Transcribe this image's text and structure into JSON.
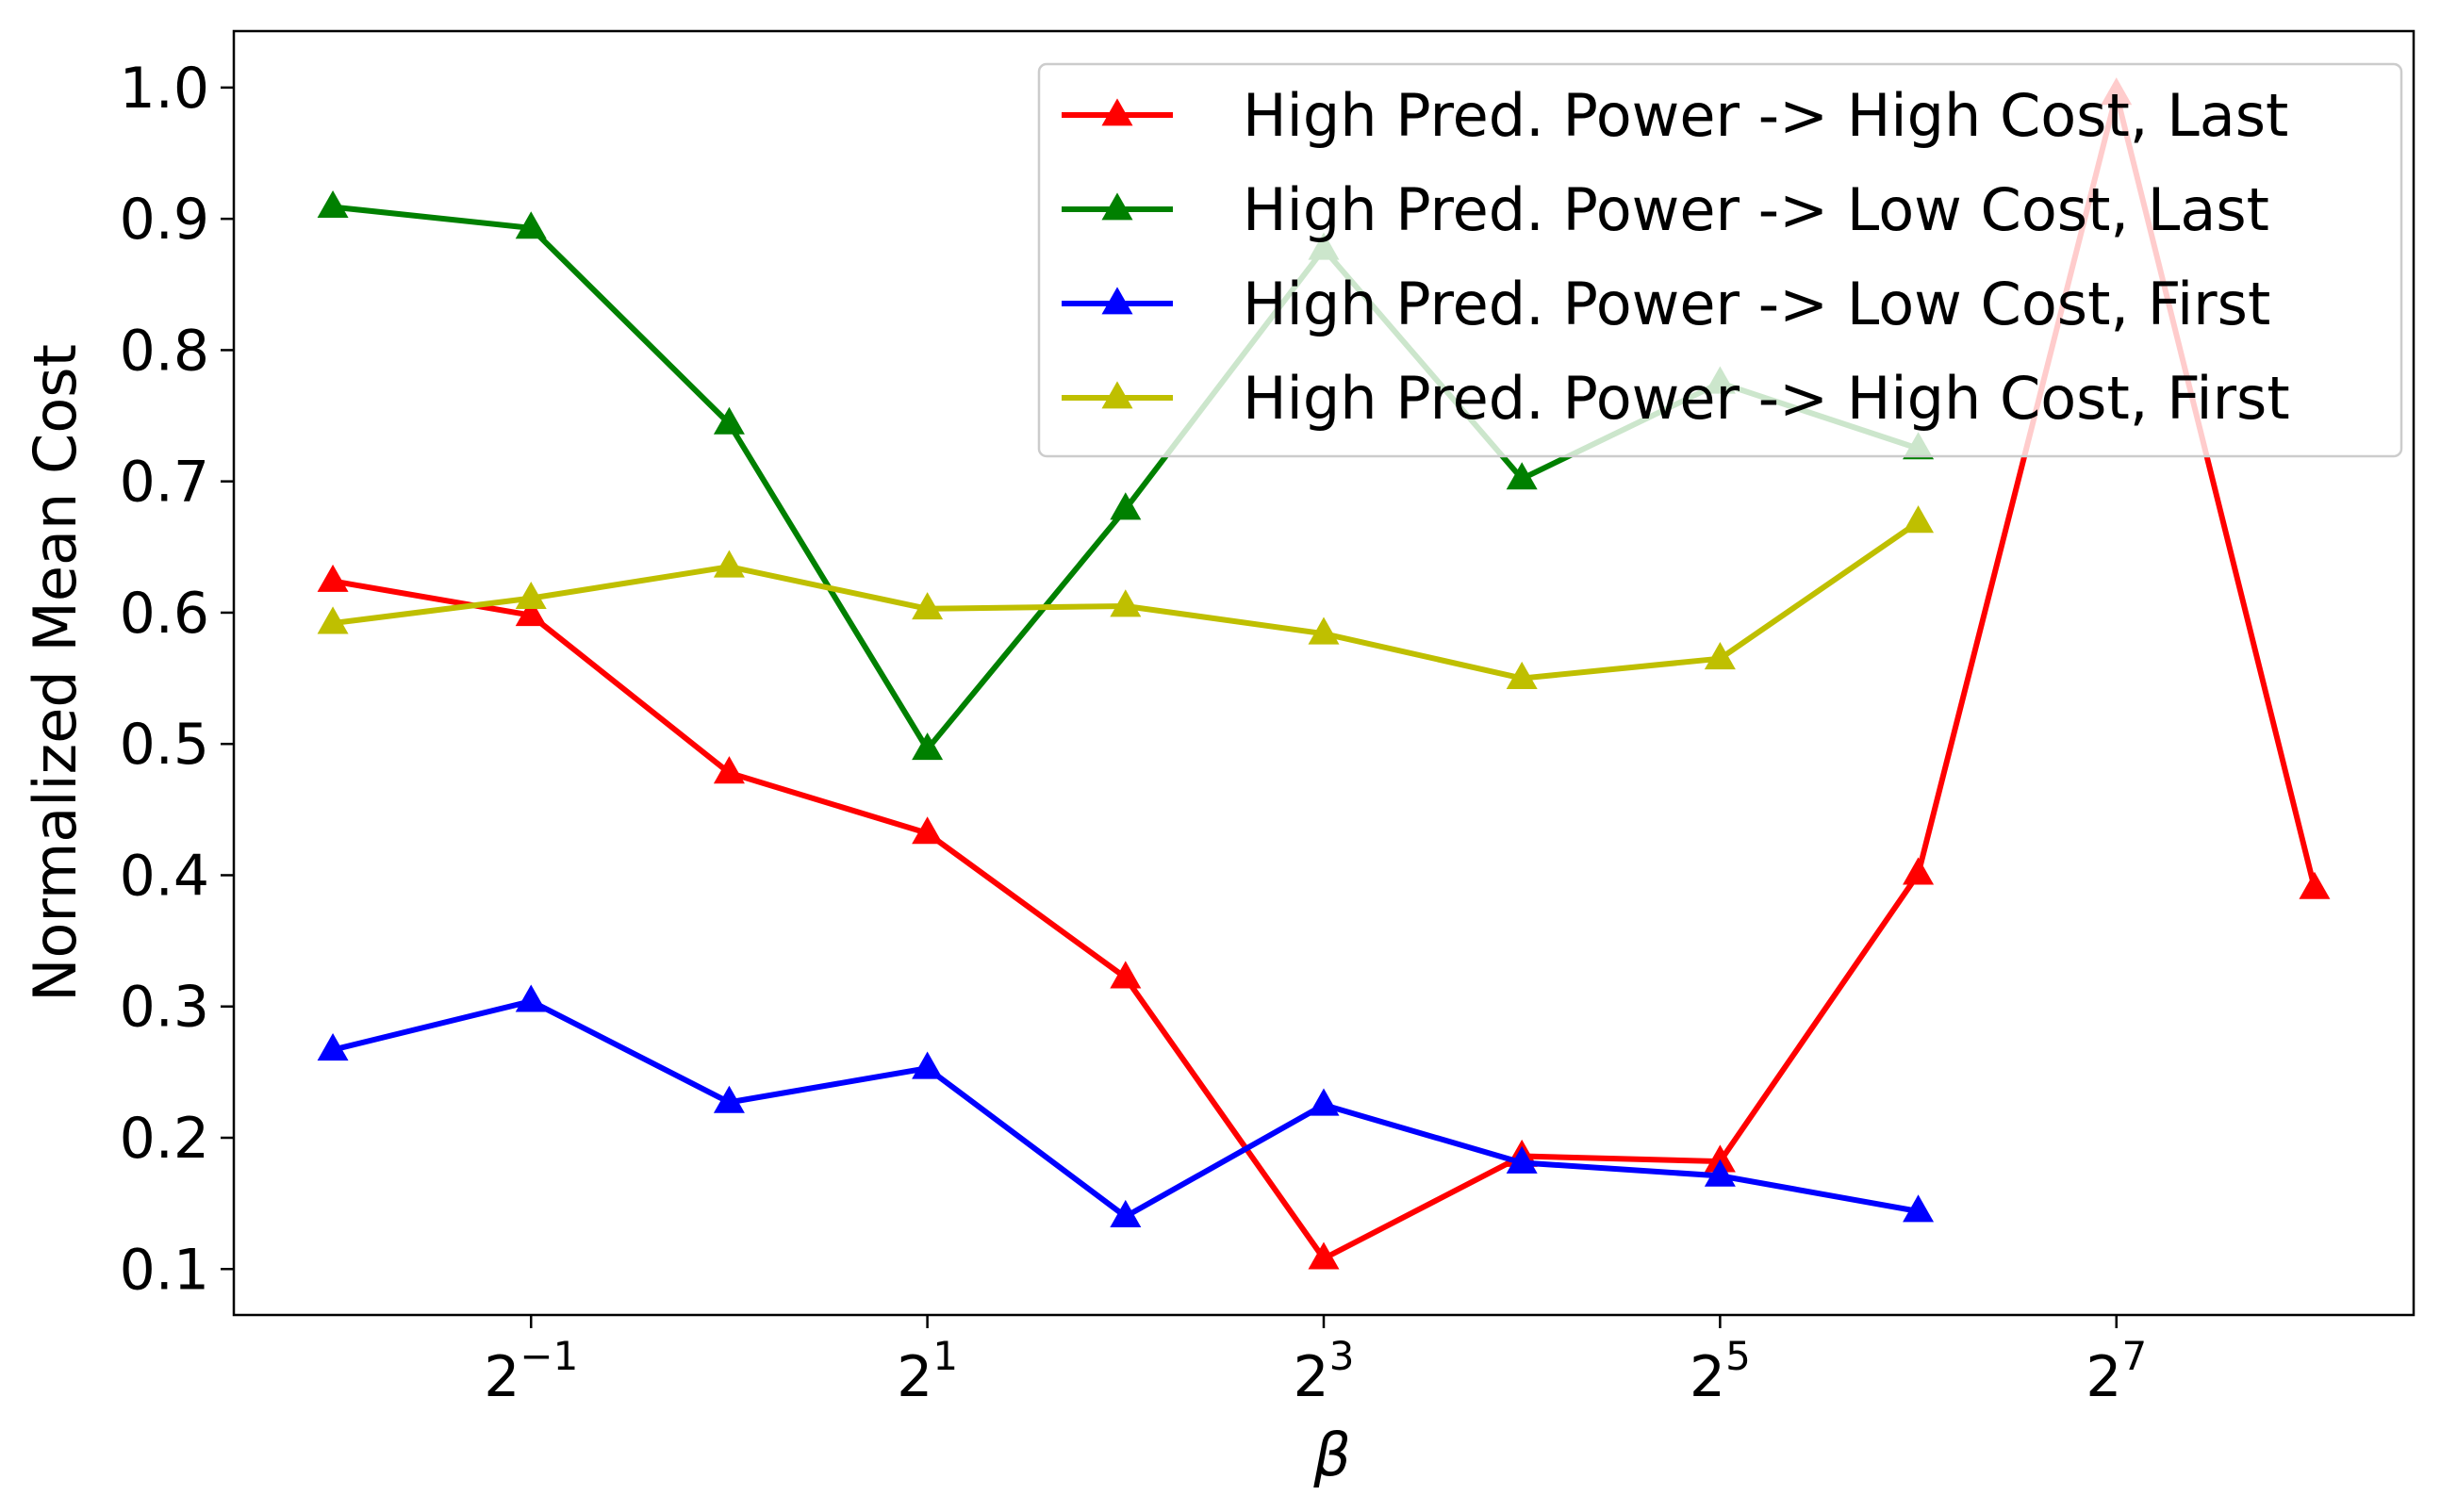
{
  "chart_data": {
    "type": "line",
    "title": "",
    "xlabel": "β",
    "ylabel": "Normalized Mean Cost",
    "x_scale": "log2",
    "x": [
      0.25,
      0.5,
      1,
      2,
      4,
      8,
      16,
      32,
      64,
      128,
      256
    ],
    "xlim": [
      0.1768,
      362
    ],
    "ylim": [
      0.065,
      1.043
    ],
    "xticks": [
      {
        "value": 0.5,
        "base": "2",
        "exp": "−1"
      },
      {
        "value": 2,
        "base": "2",
        "exp": "1"
      },
      {
        "value": 8,
        "base": "2",
        "exp": "3"
      },
      {
        "value": 32,
        "base": "2",
        "exp": "5"
      },
      {
        "value": 128,
        "base": "2",
        "exp": "7"
      }
    ],
    "yticks": [
      {
        "value": 0.1,
        "label": "0.1"
      },
      {
        "value": 0.2,
        "label": "0.2"
      },
      {
        "value": 0.3,
        "label": "0.3"
      },
      {
        "value": 0.4,
        "label": "0.4"
      },
      {
        "value": 0.5,
        "label": "0.5"
      },
      {
        "value": 0.6,
        "label": "0.6"
      },
      {
        "value": 0.7,
        "label": "0.7"
      },
      {
        "value": 0.8,
        "label": "0.8"
      },
      {
        "value": 0.9,
        "label": "0.9"
      },
      {
        "value": 1.0,
        "label": "1.0"
      }
    ],
    "grid": false,
    "legend_position": "top-right",
    "series": [
      {
        "name": "High Pred. Power -> High Cost, Last",
        "color": "#ff0000",
        "marker": "triangle",
        "values": [
          0.624,
          0.598,
          0.478,
          0.432,
          0.322,
          0.108,
          0.186,
          0.182,
          0.401,
          0.995,
          0.39
        ]
      },
      {
        "name": "High Pred. Power -> Low Cost, Last",
        "color": "#008000",
        "marker": "triangle",
        "values": [
          0.909,
          0.893,
          0.744,
          0.496,
          0.679,
          0.877,
          0.702,
          0.775,
          0.725,
          null,
          null
        ]
      },
      {
        "name": "High Pred. Power -> Low Cost, First",
        "color": "#0000ff",
        "marker": "triangle",
        "values": [
          0.267,
          0.304,
          0.227,
          0.253,
          0.14,
          0.225,
          0.181,
          0.171,
          0.144,
          null,
          null
        ]
      },
      {
        "name": "High Pred. Power -> High Cost, First",
        "color": "#bfbf00",
        "marker": "triangle",
        "values": [
          0.592,
          0.611,
          0.635,
          0.603,
          0.605,
          0.584,
          0.55,
          0.565,
          0.669,
          null,
          null
        ]
      }
    ]
  }
}
